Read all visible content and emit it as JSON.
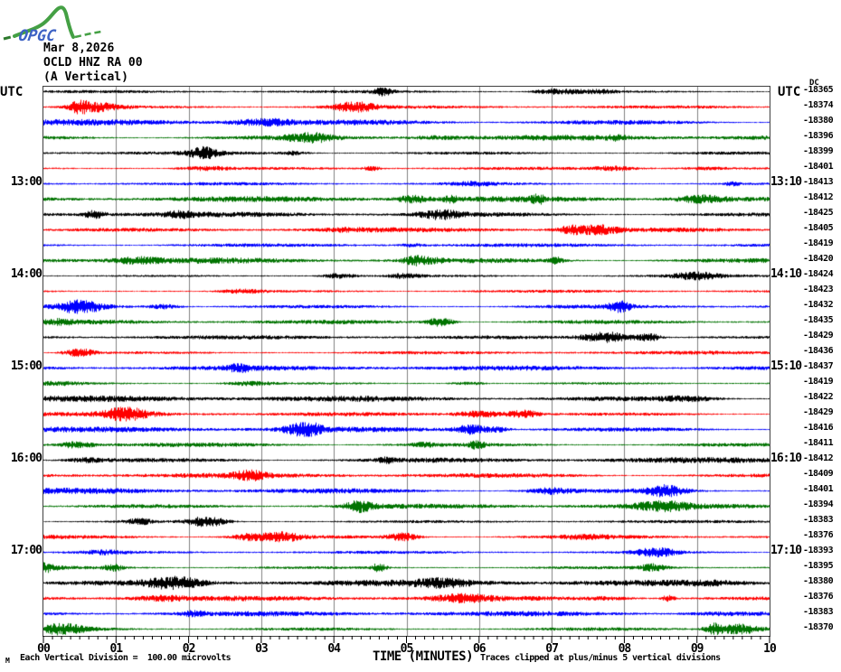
{
  "logo": {
    "text": "OPGC"
  },
  "header": {
    "date": "Mar 8,2026",
    "station": "OCLD HNZ RA 00",
    "component": "(A Vertical)"
  },
  "labels": {
    "utc_left": "UTC",
    "utc_right": "UTC",
    "dc": "DC"
  },
  "x_axis": {
    "title": "TIME (MINUTES)",
    "labels": [
      "00",
      "01",
      "02",
      "03",
      "04",
      "05",
      "06",
      "07",
      "08",
      "09",
      "10"
    ]
  },
  "footer": {
    "corner_mark": "M",
    "scale_note": "Each Vertical Division =  100.00 microvolts",
    "clip_note": "Traces clipped at plus/minus 5 vertical divisions"
  },
  "colors": {
    "black": "#000000",
    "red": "#ff0000",
    "blue": "#0000ff",
    "green": "#007300",
    "grid": "#808080",
    "frame": "#404040",
    "logo_green": "#44a044",
    "logo_dark_green": "#2d7a2d",
    "logo_blue": "#3d62c4"
  },
  "left_hour_labels": [
    {
      "row": 7,
      "label": "13:00"
    },
    {
      "row": 13,
      "label": "14:00"
    },
    {
      "row": 19,
      "label": "15:00"
    },
    {
      "row": 25,
      "label": "16:00"
    },
    {
      "row": 31,
      "label": "17:00"
    }
  ],
  "right_hour_labels": [
    {
      "row": 7,
      "label": "13:10"
    },
    {
      "row": 13,
      "label": "14:10"
    },
    {
      "row": 19,
      "label": "15:10"
    },
    {
      "row": 25,
      "label": "16:10"
    },
    {
      "row": 31,
      "label": "17:10"
    }
  ],
  "chart_data": {
    "type": "line",
    "subtype": "helicorder-seismogram",
    "title": "OCLD HNZ RA 00 (A Vertical) — Mar 8,2026",
    "xlabel": "TIME (MINUTES)",
    "x_range_minutes": [
      0,
      10
    ],
    "minutes_per_row": 10,
    "rows": 36,
    "grid": true,
    "left_axis_hour_marks": [
      "13:00",
      "14:00",
      "15:00",
      "16:00",
      "17:00"
    ],
    "right_axis_hour_marks": [
      "13:10",
      "14:10",
      "15:10",
      "16:10",
      "17:10"
    ],
    "vertical_division_microvolts": 100.0,
    "clip_divisions": 5,
    "trace_color_cycle": [
      "black",
      "red",
      "blue",
      "green"
    ],
    "dc_offsets_microvolts": [
      -18365,
      -18374,
      -18380,
      -18396,
      -18399,
      -18401,
      -18413,
      -18412,
      -18425,
      -18405,
      -18419,
      -18420,
      -18424,
      -18423,
      -18432,
      -18435,
      -18429,
      -18436,
      -18437,
      -18419,
      -18422,
      -18429,
      -18416,
      -18411,
      -18412,
      -18409,
      -18401,
      -18394,
      -18383,
      -18376,
      -18393,
      -18395,
      -18380,
      -18376,
      -18383,
      -18370
    ]
  }
}
